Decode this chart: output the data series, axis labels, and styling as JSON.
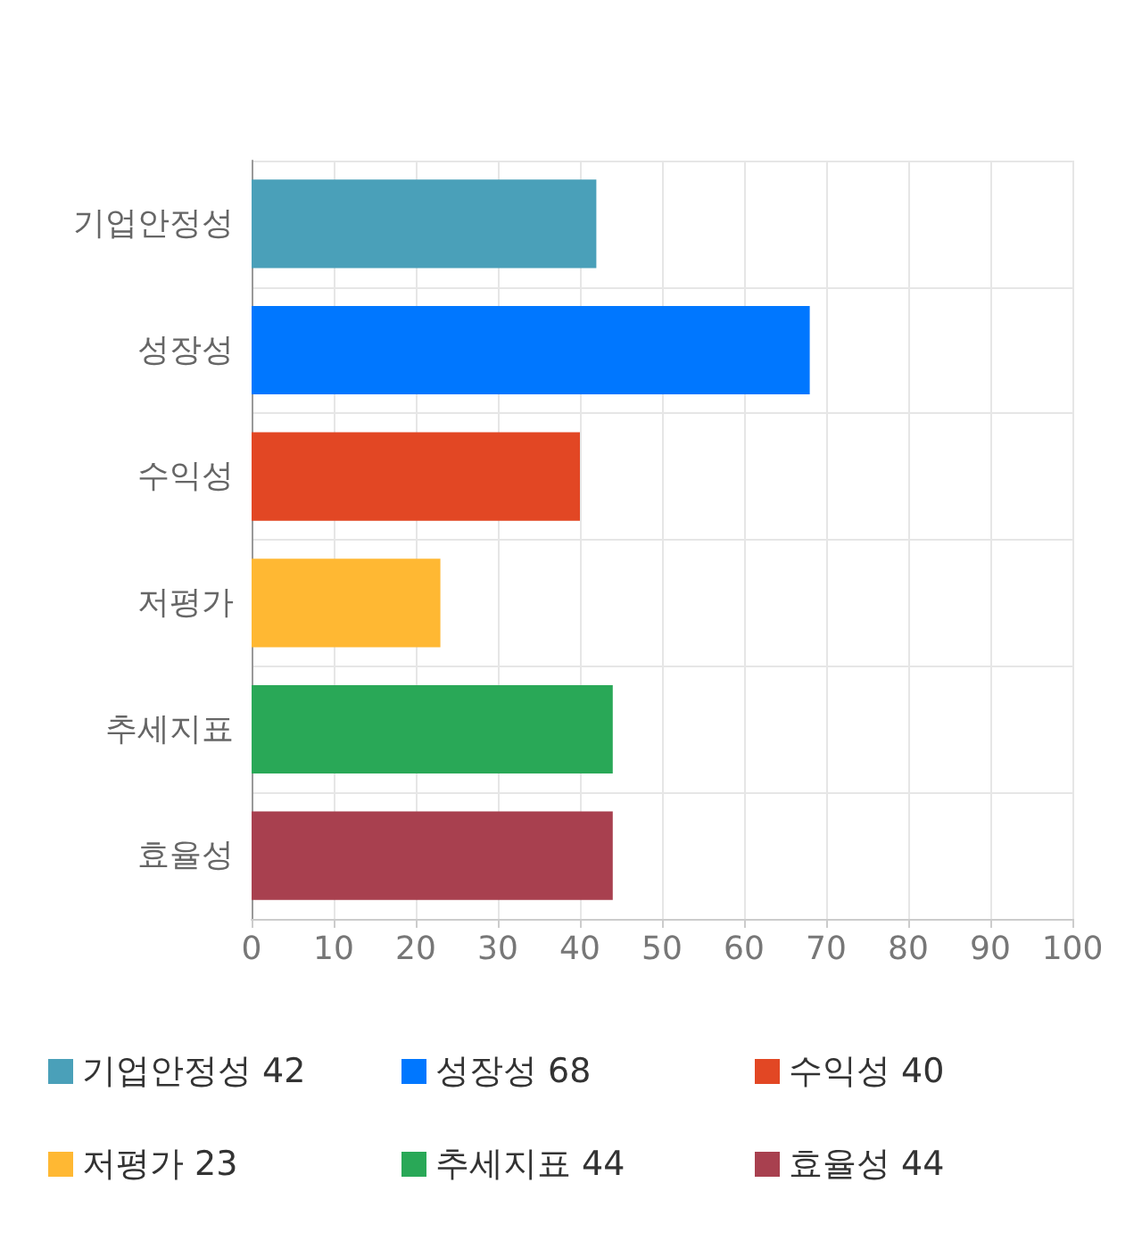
{
  "chart_data": {
    "type": "bar",
    "orientation": "horizontal",
    "stacked": true,
    "categories": [
      "기업안정성",
      "성장성",
      "수익성",
      "저평가",
      "추세지표",
      "효율성"
    ],
    "series": [
      {
        "name": "기업안정성 42",
        "color": "#4aa0b9",
        "values": [
          42,
          null,
          null,
          null,
          null,
          null
        ]
      },
      {
        "name": "성장성 68",
        "color": "#0077ff",
        "values": [
          null,
          68,
          null,
          null,
          null,
          null
        ]
      },
      {
        "name": "수익성 40",
        "color": "#e24724",
        "values": [
          null,
          null,
          40,
          null,
          null,
          null
        ]
      },
      {
        "name": "저평가 23",
        "color": "#ffb833",
        "values": [
          null,
          null,
          null,
          23,
          null,
          null
        ]
      },
      {
        "name": "추세지표 44",
        "color": "#29a857",
        "values": [
          null,
          null,
          null,
          null,
          44,
          null
        ]
      },
      {
        "name": "효율성 44",
        "color": "#a8404f",
        "values": [
          null,
          null,
          null,
          null,
          null,
          44
        ]
      }
    ],
    "xlim": [
      0,
      100
    ],
    "xticks": [
      0,
      10,
      20,
      30,
      40,
      50,
      60,
      70,
      80,
      90,
      100
    ],
    "grid": true,
    "legend": "bottom"
  }
}
